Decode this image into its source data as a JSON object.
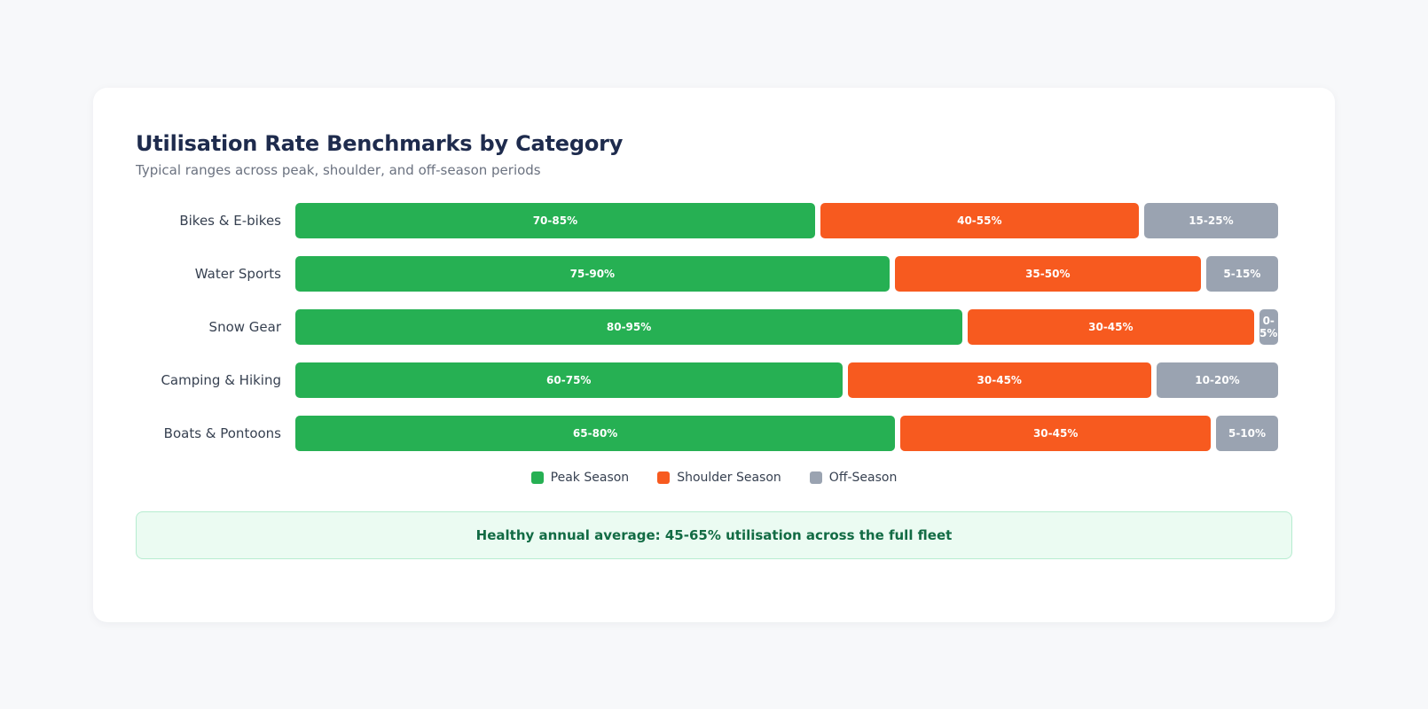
{
  "card": {
    "title": "Utilisation Rate Benchmarks by Category",
    "subtitle": "Typical ranges across peak, shoulder, and off-season periods",
    "note": "Healthy annual average: 45-65% utilisation across the full fleet"
  },
  "colors": {
    "peak": "#26b053",
    "shoulder": "#f75a1f",
    "off": "#9aa3b1"
  },
  "legend": [
    {
      "key": "peak",
      "label": "Peak Season"
    },
    {
      "key": "shoulder",
      "label": "Shoulder Season"
    },
    {
      "key": "off",
      "label": "Off-Season"
    }
  ],
  "chart_data": {
    "type": "bar",
    "orientation": "horizontal",
    "stacked": true,
    "title": "Utilisation Rate Benchmarks by Category",
    "subtitle": "Typical ranges across peak, shoulder, and off-season periods",
    "categories": [
      "Bikes & E-bikes",
      "Water Sports",
      "Snow Gear",
      "Camping & Hiking",
      "Boats & Pontoons"
    ],
    "series": [
      {
        "key": "peak",
        "name": "Peak Season",
        "ranges": [
          [
            70,
            85
          ],
          [
            75,
            90
          ],
          [
            80,
            95
          ],
          [
            60,
            75
          ],
          [
            65,
            80
          ]
        ],
        "labels": [
          "70-85%",
          "75-90%",
          "80-95%",
          "60-75%",
          "65-80%"
        ]
      },
      {
        "key": "shoulder",
        "name": "Shoulder Season",
        "ranges": [
          [
            40,
            55
          ],
          [
            35,
            50
          ],
          [
            30,
            45
          ],
          [
            30,
            45
          ],
          [
            30,
            45
          ]
        ],
        "labels": [
          "40-55%",
          "35-50%",
          "30-45%",
          "30-45%",
          "30-45%"
        ]
      },
      {
        "key": "off",
        "name": "Off-Season",
        "ranges": [
          [
            15,
            25
          ],
          [
            5,
            15
          ],
          [
            0,
            5
          ],
          [
            10,
            20
          ],
          [
            5,
            10
          ]
        ],
        "labels": [
          "15-25%",
          "5-15%",
          "0-5%",
          "10-20%",
          "5-10%"
        ]
      }
    ],
    "legend_position": "bottom-center",
    "grid": false
  }
}
